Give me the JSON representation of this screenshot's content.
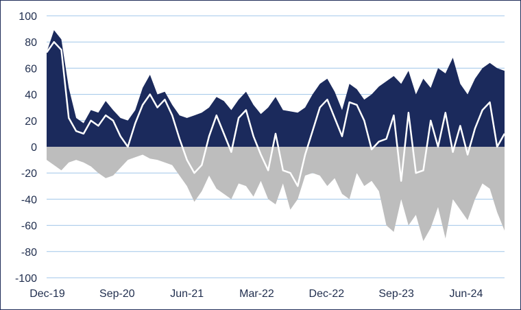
{
  "chart_data": {
    "type": "area",
    "title": "",
    "xlabel": "",
    "ylabel": "",
    "ylim": [
      -100,
      100
    ],
    "yticks": [
      100,
      80,
      60,
      40,
      20,
      0,
      -20,
      -40,
      -60,
      -80,
      -100
    ],
    "xtick_labels": [
      "Dec-19",
      "Sep-20",
      "Jun-21",
      "Mar-22",
      "Dec-22",
      "Sep-23",
      "Jun-24"
    ],
    "x": [
      "2019-12",
      "2020-01",
      "2020-02",
      "2020-03",
      "2020-04",
      "2020-05",
      "2020-06",
      "2020-07",
      "2020-08",
      "2020-09",
      "2020-10",
      "2020-11",
      "2020-12",
      "2021-01",
      "2021-02",
      "2021-03",
      "2021-04",
      "2021-05",
      "2021-06",
      "2021-07",
      "2021-08",
      "2021-09",
      "2021-10",
      "2021-11",
      "2021-12",
      "2022-01",
      "2022-02",
      "2022-03",
      "2022-04",
      "2022-05",
      "2022-06",
      "2022-07",
      "2022-08",
      "2022-09",
      "2022-10",
      "2022-11",
      "2022-12",
      "2023-01",
      "2023-02",
      "2023-03",
      "2023-04",
      "2023-05",
      "2023-06",
      "2023-07",
      "2023-08",
      "2023-09",
      "2023-10",
      "2023-11",
      "2023-12",
      "2024-01",
      "2024-02",
      "2024-03",
      "2024-04",
      "2024-05",
      "2024-06",
      "2024-07",
      "2024-08",
      "2024-09",
      "2024-10",
      "2024-11",
      "2024-12",
      "2025-01",
      "2025-02"
    ],
    "series": [
      {
        "values": [
          72,
          89,
          82,
          45,
          22,
          18,
          28,
          26,
          35,
          28,
          22,
          20,
          28,
          45,
          55,
          40,
          42,
          32,
          24,
          22,
          24,
          26,
          30,
          38,
          35,
          28,
          36,
          42,
          32,
          25,
          30,
          38,
          28,
          27,
          26,
          30,
          40,
          48,
          52,
          42,
          28,
          48,
          44,
          36,
          40,
          46,
          50,
          54,
          48,
          58,
          40,
          52,
          45,
          60,
          56,
          68,
          48,
          40,
          52,
          60,
          64,
          60,
          58
        ],
        "colors": {
          "fill": "#1b2a5c"
        }
      },
      {
        "values": [
          -10,
          -14,
          -18,
          -12,
          -10,
          -12,
          -15,
          -20,
          -24,
          -22,
          -16,
          -10,
          -8,
          -6,
          -9,
          -10,
          -12,
          -14,
          -22,
          -30,
          -42,
          -34,
          -22,
          -32,
          -36,
          -40,
          -28,
          -30,
          -38,
          -26,
          -40,
          -44,
          -28,
          -48,
          -40,
          -22,
          -20,
          -22,
          -30,
          -24,
          -36,
          -40,
          -20,
          -30,
          -26,
          -34,
          -60,
          -65,
          -40,
          -60,
          -52,
          -72,
          -62,
          -46,
          -70,
          -40,
          -48,
          -56,
          -40,
          -28,
          -32,
          -50,
          -64
        ],
        "colors": {
          "fill": "#bdbdbd"
        }
      },
      {
        "values": [
          72,
          80,
          74,
          22,
          12,
          10,
          20,
          16,
          24,
          20,
          8,
          0,
          18,
          32,
          40,
          30,
          36,
          24,
          6,
          -10,
          -20,
          -14,
          8,
          24,
          10,
          -4,
          22,
          28,
          8,
          -6,
          -18,
          10,
          -18,
          -20,
          -30,
          -6,
          12,
          30,
          36,
          22,
          8,
          34,
          32,
          20,
          -2,
          4,
          6,
          24,
          -26,
          26,
          -20,
          -18,
          20,
          0,
          26,
          -4,
          16,
          -6,
          14,
          28,
          34,
          0,
          10
        ],
        "colors": {
          "stroke": "#ffffff"
        }
      }
    ]
  }
}
